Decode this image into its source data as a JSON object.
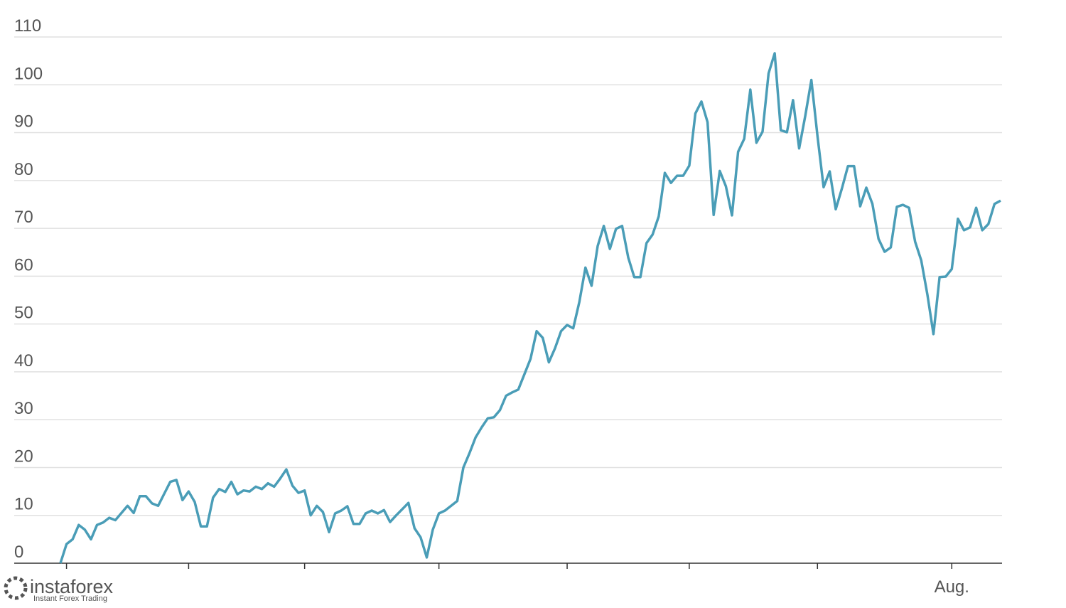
{
  "chart_data": {
    "type": "line",
    "categories": [
      null,
      null,
      null,
      null,
      null,
      null,
      null,
      null,
      null,
      null,
      null,
      null,
      null,
      null,
      null,
      null,
      null,
      null,
      null,
      null,
      null,
      null,
      null,
      null,
      null,
      null,
      null,
      null,
      null,
      null,
      null,
      null,
      null,
      null,
      null,
      null,
      null,
      null,
      null,
      null,
      null,
      null,
      null,
      null,
      null,
      null,
      null,
      null,
      null,
      null,
      null,
      null,
      null,
      null,
      null,
      null,
      null,
      null,
      null,
      null,
      null,
      null,
      null,
      null,
      null,
      null,
      null,
      null,
      null,
      null,
      null,
      null,
      null,
      null,
      null,
      null,
      null,
      null,
      null,
      null,
      null,
      null,
      null,
      null,
      null,
      null,
      null,
      null,
      null,
      null,
      null,
      null,
      null,
      null,
      null,
      null,
      null,
      null,
      null,
      null,
      null,
      null,
      null,
      null,
      null,
      null,
      null,
      null,
      null,
      null,
      null,
      null,
      null,
      null,
      null,
      null,
      null,
      null,
      null,
      null,
      null,
      null,
      null,
      null,
      null,
      null,
      null,
      null,
      null,
      null,
      null,
      null,
      null,
      null,
      null,
      null,
      null,
      null,
      null,
      null,
      null,
      null,
      null,
      null,
      null,
      null,
      "Aug.",
      null,
      null,
      null,
      null,
      null,
      null,
      null,
      null
    ],
    "values": [
      0,
      4,
      5,
      8,
      7,
      5,
      8,
      8.5,
      9.5,
      9,
      10.5,
      12,
      10.5,
      14,
      14,
      12.5,
      12,
      14.5,
      17,
      17.4,
      13.2,
      15,
      12.8,
      7.7,
      7.7,
      13.7,
      15.5,
      14.9,
      17,
      14.4,
      15.2,
      15,
      16,
      15.5,
      16.7,
      16,
      17.7,
      19.6,
      16.2,
      14.7,
      15.2,
      10,
      12,
      10.7,
      6.5,
      10.4,
      11,
      11.9,
      8.2,
      8.2,
      10.4,
      11,
      10.4,
      11.1,
      8.6,
      10,
      11.3,
      12.6,
      7.3,
      5.4,
      1.2,
      7,
      10.4,
      11,
      12,
      13,
      20,
      23,
      26.3,
      28.4,
      30.3,
      30.5,
      32,
      35,
      35.7,
      36.3,
      39.5,
      42.7,
      48.5,
      47.1,
      42,
      44.9,
      48.5,
      49.8,
      49.1,
      54.6,
      61.8,
      58,
      66.3,
      70.5,
      65.7,
      69.9,
      70.5,
      63.9,
      59.8,
      59.8,
      66.9,
      68.7,
      72.5,
      81.6,
      79.5,
      81,
      81,
      83.1,
      94,
      96.5,
      92.2,
      72.8,
      82,
      78.8,
      72.7,
      86,
      88.7,
      99,
      87.9,
      90.2,
      102.4,
      106.6,
      90.5,
      90.1,
      96.8,
      86.7,
      93.5,
      101,
      89.3,
      78.6,
      81.9,
      74,
      78.3,
      83,
      83,
      74.6,
      78.5,
      75.1,
      67.8,
      65.1,
      66,
      74.5,
      74.9,
      74.3,
      67.2,
      63.3,
      56.2,
      47.9,
      59.8,
      59.9,
      61.5,
      72,
      69.6,
      70.2,
      74.3,
      69.6,
      70.9,
      75.1,
      75.8
    ],
    "color": "#4a9db7",
    "ylim": [
      0,
      110
    ],
    "yticks": [
      0,
      10,
      20,
      30,
      40,
      50,
      60,
      70,
      80,
      90,
      100,
      110
    ],
    "grid": true
  },
  "watermark": {
    "brand": "instaforex",
    "tagline": "Instant Forex Trading"
  }
}
